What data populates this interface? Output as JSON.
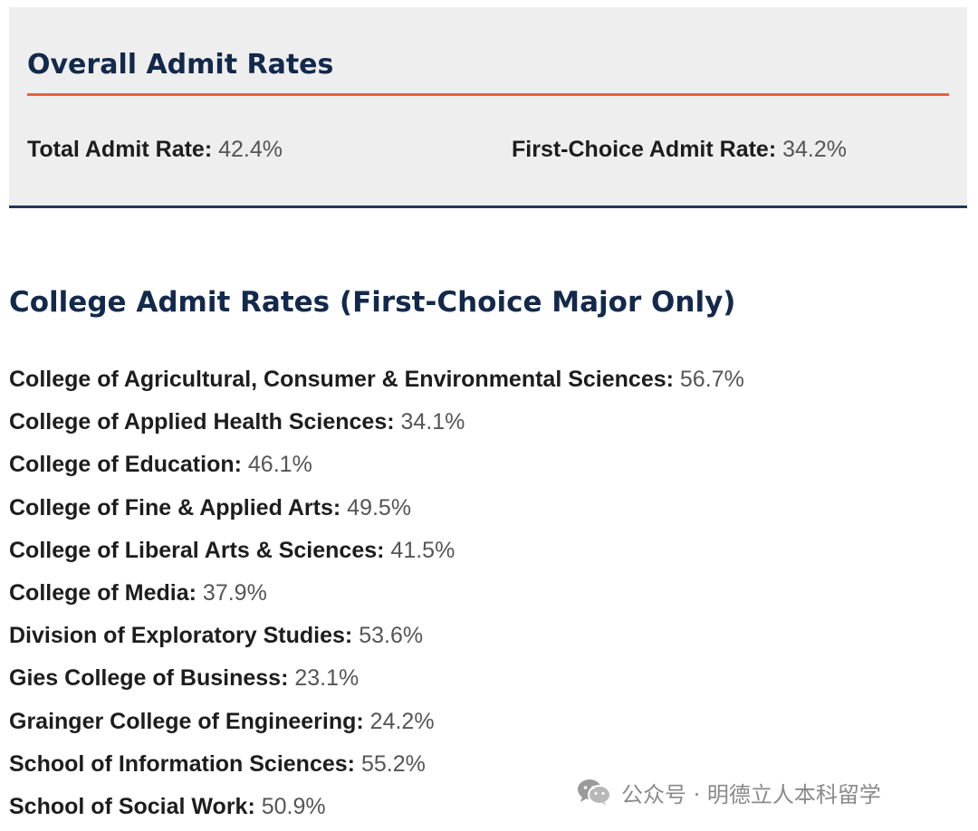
{
  "overall": {
    "title": "Overall Admit Rates",
    "total_label": "Total Admit Rate:",
    "total_value": "42.4%",
    "first_choice_label": "First-Choice Admit Rate:",
    "first_choice_value": "34.2%",
    "accent_color": "#e8613a",
    "title_color": "#13294b"
  },
  "college": {
    "title": "College Admit Rates (First-Choice Major Only)",
    "items": [
      {
        "name": "College of Agricultural, Consumer & Environmental Sciences:",
        "rate": "56.7%"
      },
      {
        "name": "College of Applied Health Sciences:",
        "rate": "34.1%"
      },
      {
        "name": "College of Education:",
        "rate": "46.1%"
      },
      {
        "name": "College of Fine & Applied Arts:",
        "rate": "49.5%"
      },
      {
        "name": "College of Liberal Arts & Sciences:",
        "rate": "41.5%"
      },
      {
        "name": "College of Media:",
        "rate": "37.9%"
      },
      {
        "name": "Division of Exploratory Studies:",
        "rate": "53.6%"
      },
      {
        "name": "Gies College of Business:",
        "rate": "23.1%"
      },
      {
        "name": "Grainger College of Engineering:",
        "rate": "24.2%"
      },
      {
        "name": "School of Information Sciences:",
        "rate": "55.2%"
      },
      {
        "name": "School of Social Work:",
        "rate": "50.9%"
      }
    ]
  },
  "watermark": {
    "icon": "wechat-icon",
    "text": "公众号 · 明德立人本科留学"
  }
}
